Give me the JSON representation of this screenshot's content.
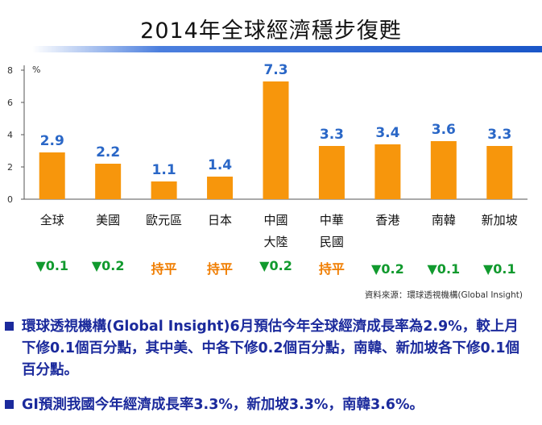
{
  "title": "2014年全球經濟穩步復甦",
  "colors": {
    "bar": "#f7960c",
    "value_label": "#2a67c7",
    "down_arrow": "#119a2e",
    "flat": "#f07d00",
    "bullet_text": "#1b2a9c"
  },
  "chart_data": {
    "type": "bar",
    "title": "2014年全球經濟穩步復甦",
    "ylabel": "%",
    "ylim": [
      0,
      8
    ],
    "yticks": [
      0,
      2,
      4,
      6,
      8
    ],
    "categories": [
      "全球",
      "美國",
      "歐元區",
      "日本",
      "中國大陸",
      "中華民國",
      "香港",
      "南韓",
      "新加坡"
    ],
    "category_lines": [
      [
        "全球"
      ],
      [
        "美國"
      ],
      [
        "歐元區"
      ],
      [
        "日本"
      ],
      [
        "中國",
        "大陸"
      ],
      [
        "中華",
        "民國"
      ],
      [
        "香港"
      ],
      [
        "南韓"
      ],
      [
        "新加坡"
      ]
    ],
    "values": [
      2.9,
      2.2,
      1.1,
      1.4,
      7.3,
      3.3,
      3.4,
      3.6,
      3.3
    ],
    "value_labels": [
      "2.9",
      "2.2",
      "1.1",
      "1.4",
      "7.3",
      "3.3",
      "3.4",
      "3.6",
      "3.3"
    ]
  },
  "changes": [
    {
      "text": "▼0.1",
      "kind": "down"
    },
    {
      "text": "▼0.2",
      "kind": "down"
    },
    {
      "text": "持平",
      "kind": "flat"
    },
    {
      "text": "持平",
      "kind": "flat"
    },
    {
      "text": "▼0.2",
      "kind": "down"
    },
    {
      "text": "持平",
      "kind": "flat"
    },
    {
      "text": "▼0.2",
      "kind": "down"
    },
    {
      "text": "▼0.1",
      "kind": "down"
    },
    {
      "text": "▼0.1",
      "kind": "down"
    }
  ],
  "source": "資料來源：環球透視機構(Global Insight)",
  "bullets": [
    "環球透視機構(Global Insight)6月預估今年全球經濟成長率為2.9%，較上月下修0.1個百分點，其中美、中各下修0.2個百分點，南韓、新加坡各下修0.1個百分點。",
    "GI預測我國今年經濟成長率3.3%，新加坡3.3%，南韓3.6%。"
  ]
}
